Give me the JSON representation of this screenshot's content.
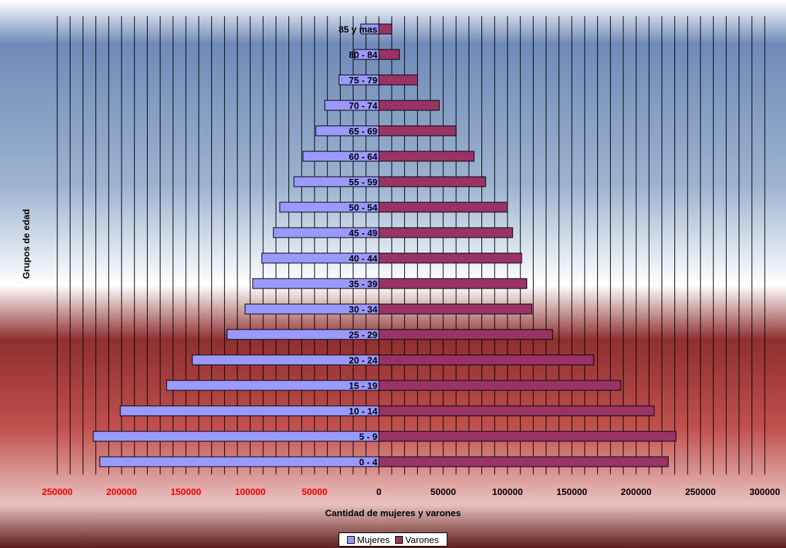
{
  "chart_data": {
    "type": "bar",
    "orientation": "horizontal",
    "stacked": "population-pyramid",
    "categories": [
      "0 - 4",
      "5 - 9",
      "10 - 14",
      "15 - 19",
      "20 - 24",
      "25 - 29",
      "30 - 34",
      "35 - 39",
      "40 - 44",
      "45 - 49",
      "50 - 54",
      "55 - 59",
      "60 - 64",
      "65 - 69",
      "70 - 74",
      "75 - 79",
      "80 - 84",
      "85 y mas"
    ],
    "series": [
      {
        "name": "Mujeres",
        "values": [
          -217000,
          -222000,
          -201000,
          -165000,
          -145000,
          -118000,
          -104000,
          -98000,
          -91000,
          -82000,
          -77000,
          -66000,
          -59000,
          -49000,
          -42000,
          -31000,
          -19000,
          -14000
        ],
        "color": "#9999ff"
      },
      {
        "name": "Varones",
        "values": [
          225000,
          231000,
          214000,
          188000,
          167000,
          135000,
          119000,
          115000,
          111000,
          104000,
          100000,
          83000,
          74000,
          60000,
          47000,
          30000,
          16000,
          10000
        ],
        "color": "#993366"
      }
    ],
    "xlim": [
      -250000,
      300000
    ],
    "x_ticks": [
      {
        "value": -250000,
        "label": "250000"
      },
      {
        "value": -200000,
        "label": "200000"
      },
      {
        "value": -150000,
        "label": "150000"
      },
      {
        "value": -100000,
        "label": "100000"
      },
      {
        "value": -50000,
        "label": "50000"
      },
      {
        "value": 0,
        "label": "0"
      },
      {
        "value": 50000,
        "label": "50000"
      },
      {
        "value": 100000,
        "label": "100000"
      },
      {
        "value": 150000,
        "label": "150000"
      },
      {
        "value": 200000,
        "label": "200000"
      },
      {
        "value": 250000,
        "label": "250000"
      },
      {
        "value": 300000,
        "label": "300000"
      }
    ],
    "negative_tick_color": "#ff0000",
    "grid_minor_step": 10000,
    "title": "",
    "xlabel": "Cantidad de mujeres y varones",
    "ylabel": "Grupos de edad",
    "legend_position": "bottom"
  }
}
